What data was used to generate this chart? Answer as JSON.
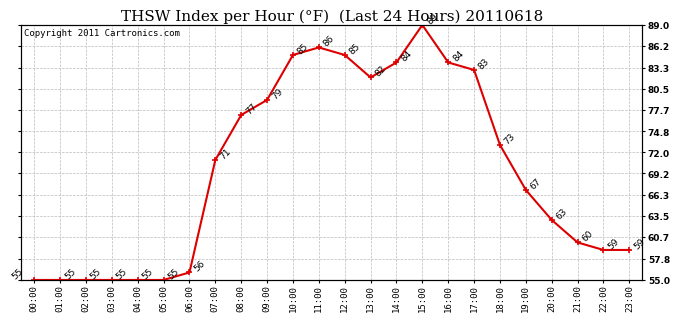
{
  "title": "THSW Index per Hour (°F)  (Last 24 Hours) 20110618",
  "copyright": "Copyright 2011 Cartronics.com",
  "hours": [
    "00:00",
    "01:00",
    "02:00",
    "03:00",
    "04:00",
    "05:00",
    "06:00",
    "07:00",
    "08:00",
    "09:00",
    "10:00",
    "11:00",
    "12:00",
    "13:00",
    "14:00",
    "15:00",
    "16:00",
    "17:00",
    "18:00",
    "19:00",
    "20:00",
    "21:00",
    "22:00",
    "23:00"
  ],
  "values": [
    55,
    55,
    55,
    55,
    55,
    55,
    56,
    71,
    77,
    79,
    85,
    86,
    85,
    82,
    84,
    89,
    84,
    83,
    73,
    67,
    63,
    60,
    59,
    59
  ],
  "ylim": [
    55.0,
    89.0
  ],
  "yticks": [
    55.0,
    57.8,
    60.7,
    63.5,
    66.3,
    69.2,
    72.0,
    74.8,
    77.7,
    80.5,
    83.3,
    86.2,
    89.0
  ],
  "line_color": "#dd0000",
  "marker_color": "#dd0000",
  "bg_color": "#ffffff",
  "grid_color": "#bbbbbb",
  "title_fontsize": 11,
  "label_fontsize": 6.5,
  "annot_fontsize": 6.5,
  "copyright_fontsize": 6.5
}
